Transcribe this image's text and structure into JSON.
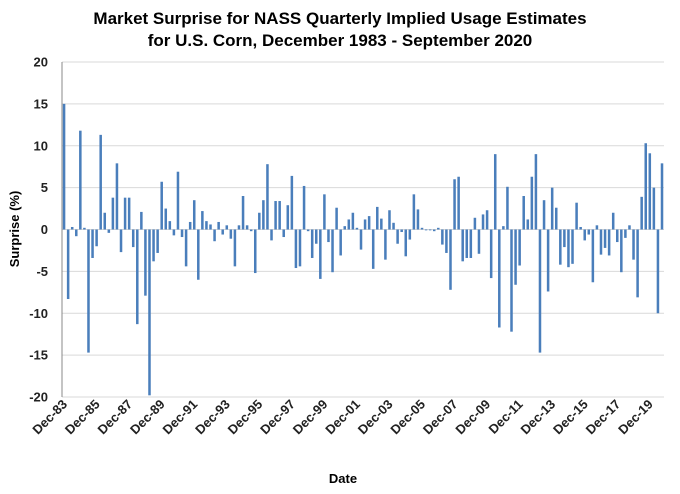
{
  "chart_data": {
    "type": "bar",
    "title": [
      "Market Surprise for NASS Quarterly Implied Usage Estimates",
      "for U.S. Corn, December 1983 - September 2020"
    ],
    "xlabel": "Date",
    "ylabel": "Surprise (%)",
    "ylim": [
      -20,
      20
    ],
    "yticks": [
      20,
      15,
      10,
      5,
      0,
      -5,
      -10,
      -15,
      -20
    ],
    "grid": true,
    "bar_color": "#4a7ebb",
    "x_tick_labels": [
      "Dec-83",
      "Dec-85",
      "Dec-87",
      "Dec-89",
      "Dec-91",
      "Dec-93",
      "Dec-95",
      "Dec-97",
      "Dec-99",
      "Dec-01",
      "Dec-03",
      "Dec-05",
      "Dec-07",
      "Dec-09",
      "Dec-11",
      "Dec-13",
      "Dec-15",
      "Dec-17",
      "Dec-19"
    ],
    "x_tick_every_n_bars": 8,
    "values": [
      15,
      -8.3,
      0.3,
      -0.8,
      11.8,
      0.2,
      -14.7,
      -3.4,
      -2,
      11.3,
      2,
      -0.4,
      3.8,
      7.9,
      -2.7,
      3.8,
      3.8,
      -2.1,
      -11.3,
      2.1,
      -7.9,
      -19.8,
      -3.8,
      -2.8,
      5.7,
      2.5,
      1,
      -0.7,
      6.9,
      -0.9,
      -4.4,
      0.9,
      3.5,
      -6,
      2.2,
      1,
      0.6,
      -1.4,
      0.9,
      -0.6,
      0.5,
      -1.1,
      -4.4,
      0.5,
      4,
      0.5,
      -0.2,
      -5.2,
      2,
      3.5,
      7.8,
      -1.3,
      3.4,
      3.4,
      -0.9,
      2.9,
      6.4,
      -4.6,
      -4.4,
      5.2,
      -0.2,
      -3.4,
      -1.7,
      -5.9,
      4.2,
      -1.5,
      -5.1,
      2.6,
      -3.1,
      0.4,
      1.2,
      2,
      0.2,
      -2.4,
      1.2,
      1.6,
      -4.7,
      2.7,
      1.3,
      -3.6,
      2.3,
      0.8,
      -1.7,
      -0.3,
      -3.2,
      -1.2,
      4.2,
      2.4,
      0.2,
      -0.1,
      -0.1,
      -0.2,
      0.2,
      -1.8,
      -2.8,
      -7.2,
      6,
      6.3,
      -3.8,
      -3.4,
      -3.4,
      1.4,
      -2.9,
      1.8,
      2.3,
      -5.8,
      9,
      -11.7,
      0.4,
      5.1,
      -12.2,
      -6.6,
      -4.3,
      4,
      1.2,
      6.3,
      9,
      -14.7,
      3.5,
      -7.4,
      5,
      2.6,
      -4.2,
      -2.1,
      -4.5,
      -4.1,
      3.2,
      0.3,
      -1.3,
      -0.6,
      -6.3,
      0.5,
      -3,
      -2.2,
      -3.1,
      2,
      -1.5,
      -5.1,
      -1,
      0.5,
      -3.6,
      -8.1,
      3.9,
      10.3,
      9.1,
      5,
      -10,
      7.9
    ]
  }
}
